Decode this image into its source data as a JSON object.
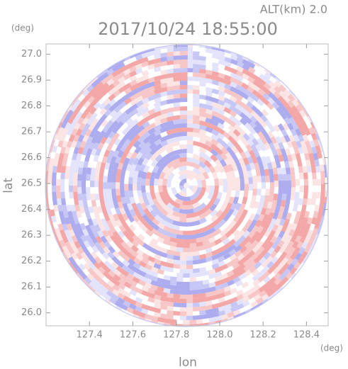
{
  "chart_data": {
    "type": "radar-ppi",
    "subtitle": "ALT(km) 2.0",
    "title": "2017/10/24 18:55:00",
    "x_label": "lon",
    "x_unit": "(deg)",
    "y_label": "lat",
    "y_unit": "(deg)",
    "xlim": [
      127.2,
      128.5
    ],
    "ylim": [
      25.95,
      27.04
    ],
    "xticks": [
      127.4,
      127.6,
      127.8,
      {
        "value": 128,
        "label": "128.0"
      },
      128.2,
      128.4
    ],
    "yticks": [
      {
        "value": 26,
        "label": "26.0"
      },
      26.1,
      26.2,
      26.3,
      26.4,
      26.5,
      26.6,
      26.7,
      26.8,
      26.9,
      {
        "value": 27,
        "label": "27.0"
      }
    ]
  }
}
